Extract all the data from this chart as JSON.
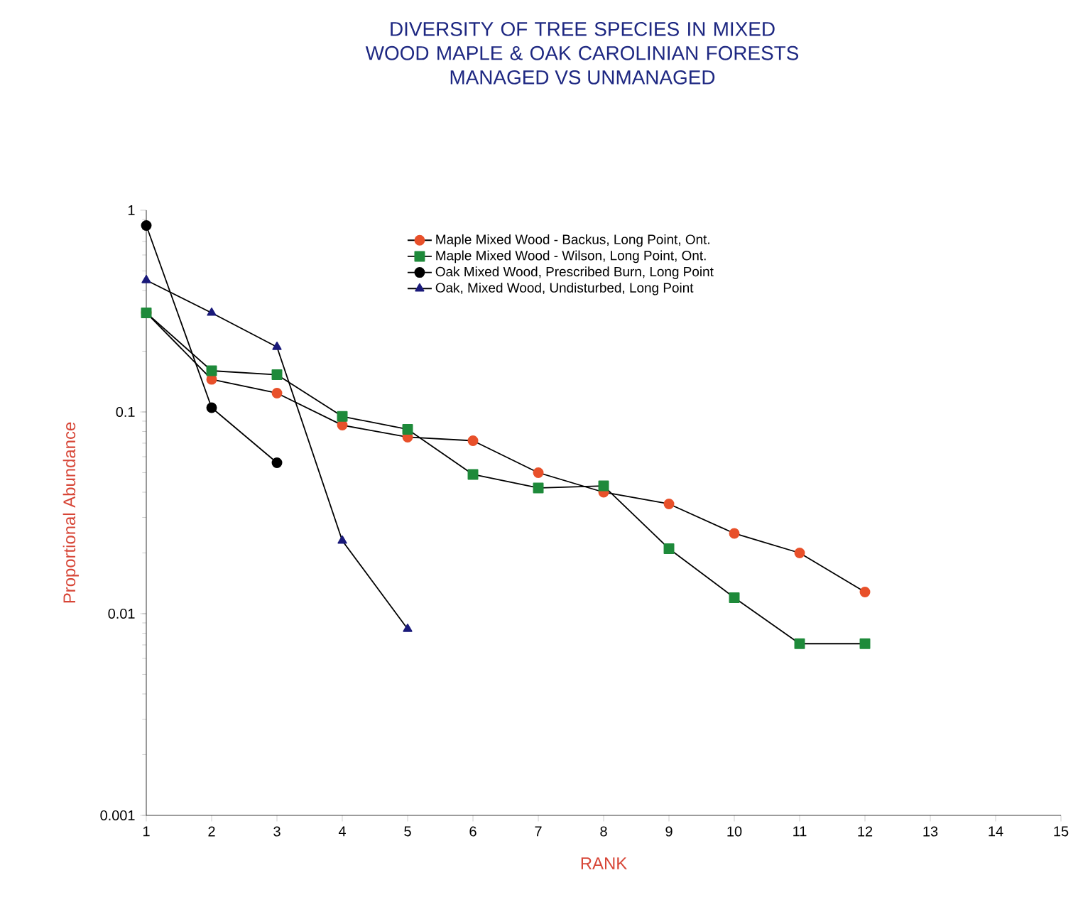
{
  "chart_data": {
    "type": "line",
    "title": "DIVERSITY OF TREE SPECIES IN MIXED WOOD MAPLE & OAK CAROLINIAN FORESTS",
    "subtitle": "MANAGED VS UNMANAGED",
    "xlabel": "RANK",
    "ylabel": "Proportional Abundance",
    "x": [
      1,
      2,
      3,
      4,
      5,
      6,
      7,
      8,
      9,
      10,
      11,
      12
    ],
    "series": [
      {
        "name": "Maple Mixed Wood - Backus, Long Point, Ont.",
        "color": "#e8502a",
        "marker": "circle",
        "values": [
          0.31,
          0.145,
          0.124,
          0.086,
          0.075,
          0.072,
          0.05,
          0.04,
          0.035,
          0.025,
          0.02,
          0.0128
        ]
      },
      {
        "name": "Maple Mixed Wood - Wilson, Long Point, Ont.",
        "color": "#1e8a3a",
        "marker": "square",
        "values": [
          0.31,
          0.16,
          0.153,
          0.095,
          0.082,
          0.049,
          0.042,
          0.043,
          0.021,
          0.012,
          0.0071,
          0.0071
        ]
      },
      {
        "name": "Oak Mixed Wood, Prescribed Burn, Long Point",
        "color": "#000000",
        "marker": "circle",
        "values": [
          0.84,
          0.105,
          0.056,
          null,
          null,
          null,
          null,
          null,
          null,
          null,
          null,
          null
        ]
      },
      {
        "name": "Oak, Mixed Wood, Undisturbed, Long Point",
        "color": "#1a1a7a",
        "marker": "triangle",
        "values": [
          0.45,
          0.31,
          0.21,
          0.023,
          0.0084,
          null,
          null,
          null,
          null,
          null,
          null,
          null
        ]
      }
    ],
    "log": "y",
    "xlim": [
      1,
      15
    ],
    "xticks": [
      1,
      2,
      3,
      4,
      5,
      6,
      7,
      8,
      9,
      10,
      11,
      12,
      13,
      14,
      15
    ],
    "ylim": [
      0.001,
      1
    ],
    "yticks": [
      0.001,
      0.01,
      0.1,
      1
    ],
    "grid": false,
    "legend": "top right",
    "line_style": "solid"
  }
}
